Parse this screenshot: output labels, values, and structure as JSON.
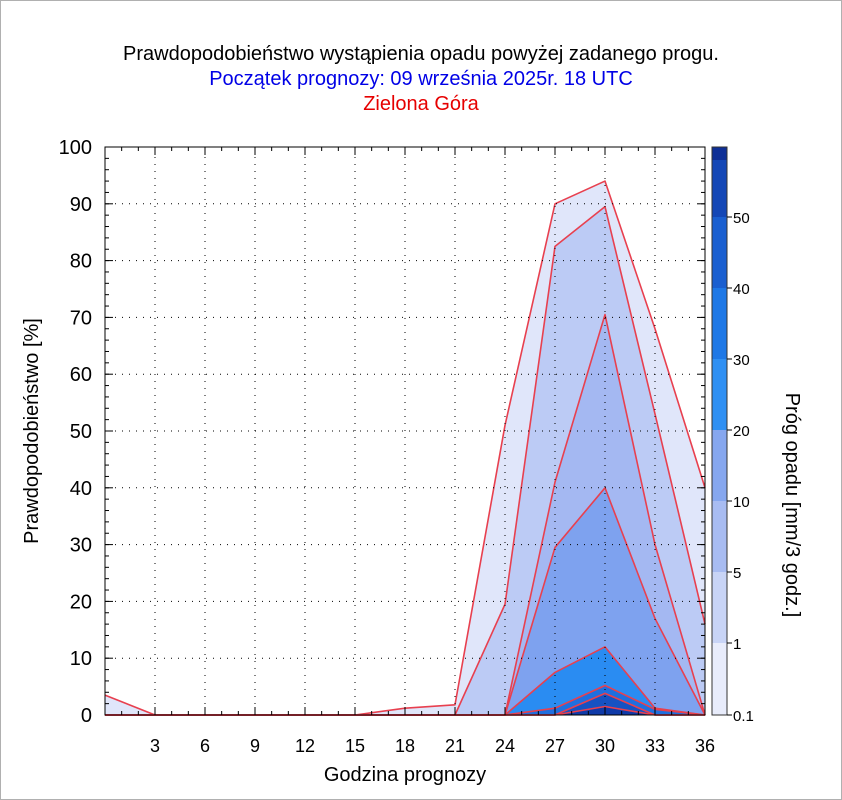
{
  "title": "Prawdopodobieństwo wystąpienia opadu powyżej zadanego progu.",
  "subtitle": "Początek prognozy: 09 września 2025r. 18 UTC",
  "location": "Zielona Góra",
  "colors": {
    "title": "#000000",
    "subtitle": "#0000e6",
    "location": "#e60000",
    "outline": "#e8404f"
  },
  "chart_data": {
    "type": "area",
    "title": "Prawdopodobieństwo wystąpienia opadu powyżej zadanego progu.",
    "xlabel": "Godzina prognozy",
    "ylabel": "Prawdopodobieństwo [%]",
    "xlim": [
      0,
      36
    ],
    "ylim": [
      0,
      100
    ],
    "x_ticks": [
      3,
      6,
      9,
      12,
      15,
      18,
      21,
      24,
      27,
      30,
      33,
      36
    ],
    "y_ticks": [
      0,
      10,
      20,
      30,
      40,
      50,
      60,
      70,
      80,
      90,
      100
    ],
    "x": [
      0,
      3,
      6,
      9,
      12,
      15,
      18,
      21,
      24,
      27,
      30,
      33,
      36
    ],
    "series": [
      {
        "name": "0.1",
        "color": "#e0e6fa",
        "values": [
          3.5,
          0,
          0,
          0,
          0,
          0,
          1.2,
          1.8,
          51,
          90,
          94,
          68,
          40
        ]
      },
      {
        "name": "1",
        "color": "#bccbf5",
        "values": [
          0,
          0,
          0,
          0,
          0,
          0,
          0,
          0,
          19.5,
          82.5,
          89.5,
          53,
          16
        ]
      },
      {
        "name": "5",
        "color": "#a4b8f2",
        "values": [
          0,
          0,
          0,
          0,
          0,
          0,
          0,
          0,
          0,
          41,
          70.5,
          30,
          0
        ]
      },
      {
        "name": "10",
        "color": "#7ea2ef",
        "values": [
          0,
          0,
          0,
          0,
          0,
          0,
          0,
          0,
          0,
          29.5,
          40,
          17,
          0
        ]
      },
      {
        "name": "20",
        "color": "#2a8cf2",
        "values": [
          0,
          0,
          0,
          0,
          0,
          0,
          0,
          0,
          0,
          7.5,
          12,
          1.2,
          0
        ]
      },
      {
        "name": "30",
        "color": "#1f6fdf",
        "values": [
          0,
          0,
          0,
          0,
          0,
          0,
          0,
          0,
          0,
          1.2,
          5.2,
          1.0,
          0
        ]
      },
      {
        "name": "40",
        "color": "#1652c2",
        "values": [
          0,
          0,
          0,
          0,
          0,
          0,
          0,
          0,
          0,
          0,
          3.8,
          0,
          0
        ]
      },
      {
        "name": "50",
        "color": "#0f3aa8",
        "values": [
          0,
          0,
          0,
          0,
          0,
          0,
          0,
          0,
          0,
          0,
          1.5,
          0,
          0
        ]
      }
    ],
    "colorbar": {
      "label": "Próg opadu [mm/3 godz.]",
      "tick_labels": [
        "0.1",
        "1",
        "5",
        "10",
        "20",
        "30",
        "40",
        "50"
      ],
      "colors": [
        "#e8ecfb",
        "#c8d4f6",
        "#a8bcf2",
        "#86a7ef",
        "#2f90f3",
        "#1e78e6",
        "#1a5fd0",
        "#1447b6",
        "#0e2f96"
      ]
    }
  }
}
